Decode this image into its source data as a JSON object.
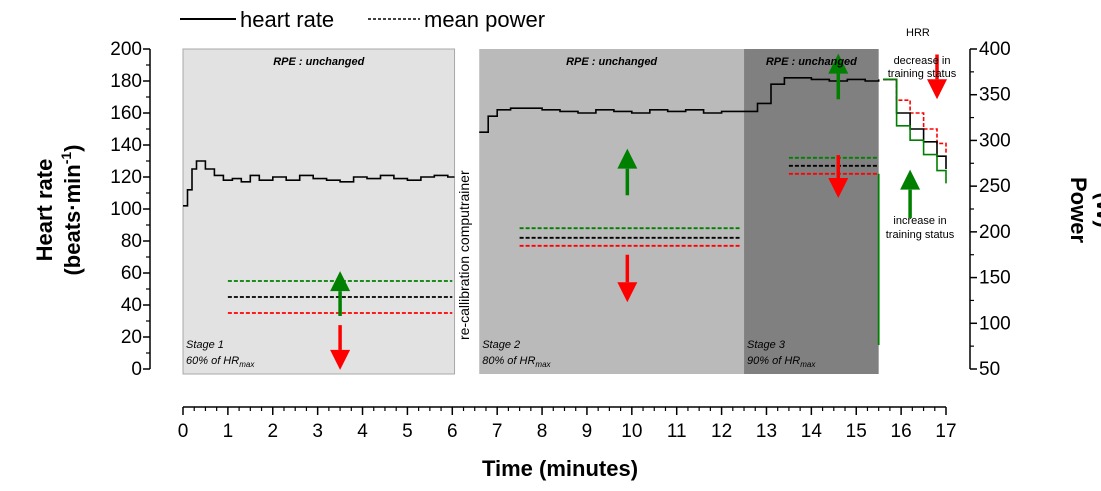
{
  "chart_data": {
    "type": "line",
    "xlabel": "Time (minutes)",
    "ylabel_line1": "Heart rate",
    "ylabel_line2": "(beats·min",
    "ylabel_sup": "-1",
    "ylabel_close": ")",
    "y2label_line1": "Power",
    "y2label_line2": "(W)",
    "xlim": [
      0,
      17
    ],
    "ylim": [
      0,
      200
    ],
    "y2lim": [
      50,
      400
    ],
    "x_ticks": [
      "0",
      "1",
      "2",
      "3",
      "4",
      "5",
      "6",
      "7",
      "8",
      "9",
      "10",
      "11",
      "12",
      "13",
      "14",
      "15",
      "16",
      "17"
    ],
    "y_ticks": [
      "0",
      "20",
      "40",
      "60",
      "80",
      "100",
      "120",
      "140",
      "160",
      "180",
      "200"
    ],
    "y2_ticks": [
      "50",
      "100",
      "150",
      "200",
      "250",
      "300",
      "350",
      "400"
    ],
    "legend": {
      "placement": "top-left",
      "entries": [
        {
          "label": "heart rate",
          "style": "solid"
        },
        {
          "label": "mean power",
          "style": "dashed"
        }
      ]
    },
    "stages": [
      {
        "x0": 0,
        "x1": 6.05,
        "color": "#e2e2e2",
        "rpe": "RPE : unchanged",
        "stage": "Stage 1",
        "pct": "60% of HR",
        "sub": "max"
      },
      {
        "x0": 6.6,
        "x1": 12.5,
        "color": "#bababa",
        "rpe": "RPE : unchanged",
        "stage": "Stage 2",
        "pct": "80% of HR",
        "sub": "max"
      },
      {
        "x0": 12.5,
        "x1": 15.5,
        "color": "#808080",
        "rpe": "RPE : unchanged",
        "stage": "Stage 3",
        "pct": "90% of HR",
        "sub": "max"
      }
    ],
    "recalibration_label": "re-callibration computrainer",
    "series": [
      {
        "name": "heart rate",
        "color": "#000000",
        "x": [
          0.0,
          0.1,
          0.2,
          0.3,
          0.5,
          0.7,
          0.9,
          1.1,
          1.3,
          1.5,
          1.7,
          2.0,
          2.3,
          2.6,
          2.9,
          3.2,
          3.5,
          3.8,
          4.1,
          4.4,
          4.7,
          5.0,
          5.3,
          5.6,
          5.9,
          6.05
        ],
        "y": [
          102,
          112,
          125,
          130,
          125,
          121,
          118,
          119,
          117,
          121,
          118,
          120,
          118,
          121,
          119,
          118,
          117,
          120,
          119,
          121,
          119,
          118,
          120,
          121,
          120,
          120
        ]
      },
      {
        "name": "heart rate",
        "color": "#000000",
        "x": [
          6.6,
          6.8,
          7.0,
          7.3,
          7.6,
          8.0,
          8.4,
          8.8,
          9.2,
          9.6,
          10.0,
          10.4,
          10.8,
          11.2,
          11.6,
          12.0,
          12.5,
          12.8,
          13.1,
          13.4,
          13.7,
          14.0,
          14.4,
          14.8,
          15.2,
          15.5
        ],
        "y": [
          148,
          158,
          162,
          163,
          163,
          162,
          161,
          160,
          162,
          161,
          160,
          162,
          161,
          162,
          160,
          161,
          161,
          166,
          178,
          182,
          182,
          181,
          180,
          181,
          180,
          181
        ]
      }
    ],
    "power_levels": [
      {
        "x0": 1.0,
        "x1": 6.0,
        "red": 35,
        "black": 45,
        "green": 55
      },
      {
        "x0": 7.5,
        "x1": 12.4,
        "red": 77,
        "black": 82,
        "green": 88
      },
      {
        "x0": 13.5,
        "x1": 15.5,
        "red": 122,
        "black": 127,
        "green": 132
      }
    ],
    "arrows": [
      {
        "x": 3.5,
        "dir": "up",
        "color": "#008000",
        "y_from": 108,
        "y_to": 157
      },
      {
        "x": 3.5,
        "dir": "down",
        "color": "#ff0000",
        "y_from": 98,
        "y_to": 49
      },
      {
        "x": 9.9,
        "dir": "up",
        "color": "#008000",
        "y_from": 240,
        "y_to": 291
      },
      {
        "x": 9.9,
        "dir": "down",
        "color": "#ff0000",
        "y_from": 175,
        "y_to": 123
      },
      {
        "x": 14.6,
        "dir": "up",
        "color": "#008000",
        "y_from": 345,
        "y_to": 395
      },
      {
        "x": 14.6,
        "dir": "down",
        "color": "#ff0000",
        "y_from": 284,
        "y_to": 237
      },
      {
        "x": 16.8,
        "dir": "down",
        "color": "#ff0000",
        "y_from": 394,
        "y_to": 345,
        "scale": "y2"
      },
      {
        "x": 16.2,
        "dir": "up",
        "color": "#008000",
        "y_from": 215,
        "y_to": 268,
        "scale": "y2"
      }
    ],
    "hrr_lines": [
      {
        "color": "#ff0000",
        "style": "dashed",
        "x": [
          15.6,
          15.9,
          16.2,
          16.5,
          16.8,
          17.0
        ],
        "y": [
          181,
          168,
          160,
          150,
          141,
          134
        ]
      },
      {
        "color": "#000000",
        "style": "solid",
        "x": [
          15.6,
          15.9,
          16.2,
          16.5,
          16.8,
          17.0
        ],
        "y": [
          181,
          160,
          150,
          142,
          133,
          125
        ]
      },
      {
        "color": "#008000",
        "style": "solid",
        "x": [
          15.6,
          15.9,
          16.2,
          16.5,
          16.8,
          17.0
        ],
        "y": [
          181,
          152,
          143,
          134,
          124,
          116
        ]
      }
    ],
    "annotations": {
      "hrr": "HRR",
      "decrease_1": "decrease in",
      "decrease_2": "training status",
      "increase_1": "increase in",
      "increase_2": "training status"
    }
  }
}
